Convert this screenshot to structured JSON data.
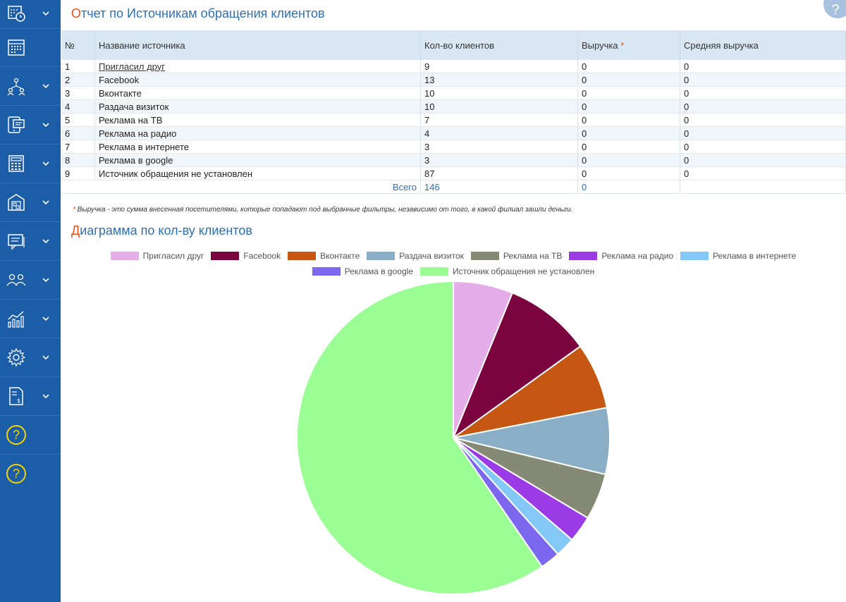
{
  "report": {
    "title_first": "О",
    "title_rest": "тчет по Источникам обращения клиентов",
    "help_label": "?",
    "columns": [
      "№",
      "Название источника",
      "Кол-во клиентов",
      "Выручка",
      "Средняя выручка"
    ],
    "revenue_star": "*",
    "rows": [
      {
        "n": "1",
        "name": "Пригласил друг",
        "clients": "9",
        "revenue": "0",
        "avg": "0"
      },
      {
        "n": "2",
        "name": "Facebook",
        "clients": "13",
        "revenue": "0",
        "avg": "0"
      },
      {
        "n": "3",
        "name": "Вконтакте",
        "clients": "10",
        "revenue": "0",
        "avg": "0"
      },
      {
        "n": "4",
        "name": "Раздача визиток",
        "clients": "10",
        "revenue": "0",
        "avg": "0"
      },
      {
        "n": "5",
        "name": "Реклама на ТВ",
        "clients": "7",
        "revenue": "0",
        "avg": "0"
      },
      {
        "n": "6",
        "name": "Реклама на радио",
        "clients": "4",
        "revenue": "0",
        "avg": "0"
      },
      {
        "n": "7",
        "name": "Реклама в интернете",
        "clients": "3",
        "revenue": "0",
        "avg": "0"
      },
      {
        "n": "8",
        "name": "Реклама в google",
        "clients": "3",
        "revenue": "0",
        "avg": "0"
      },
      {
        "n": "9",
        "name": "Источник обращения не установлен",
        "clients": "87",
        "revenue": "0",
        "avg": "0"
      }
    ],
    "total_label": "Всего",
    "total_clients": "146",
    "total_revenue": "0",
    "note_star": "*",
    "note_text": " Выручка - это сумма внесенная посетителями, которые попадают под выбранные фильтры, независимо от того, в какой филиал зашли деньги."
  },
  "chart_title_first": "Д",
  "chart_title_rest": "иаграмма по кол-ву клиентов",
  "sidebar": {
    "items": [
      "calendar-clock-icon",
      "calendar-grid-icon",
      "org-structure-icon",
      "devices-icon",
      "calculator-icon",
      "warehouse-icon",
      "messages-icon",
      "clients-icon",
      "analytics-icon",
      "settings-icon",
      "invoice-icon",
      "help-icon",
      "help-icon"
    ],
    "help_label": "?"
  },
  "colors": {
    "sidebar_bg": "#1b5da6",
    "title_blue": "#2f6fb6",
    "accent_orange": "#e8501b"
  },
  "chart_data": {
    "type": "pie",
    "categories": [
      "Пригласил друг",
      "Facebook",
      "Вконтакте",
      "Раздача визиток",
      "Реклама на ТВ",
      "Реклама на радио",
      "Реклама в интернете",
      "Реклама в google",
      "Источник обращения не установлен"
    ],
    "values": [
      9,
      13,
      10,
      10,
      7,
      4,
      3,
      3,
      87
    ],
    "colors": [
      "#e4aee9",
      "#7b0340",
      "#c55713",
      "#8aaec5",
      "#858a75",
      "#9b3be6",
      "#84c8f8",
      "#7b68ee",
      "#9bfe95"
    ],
    "legend_position": "top"
  }
}
